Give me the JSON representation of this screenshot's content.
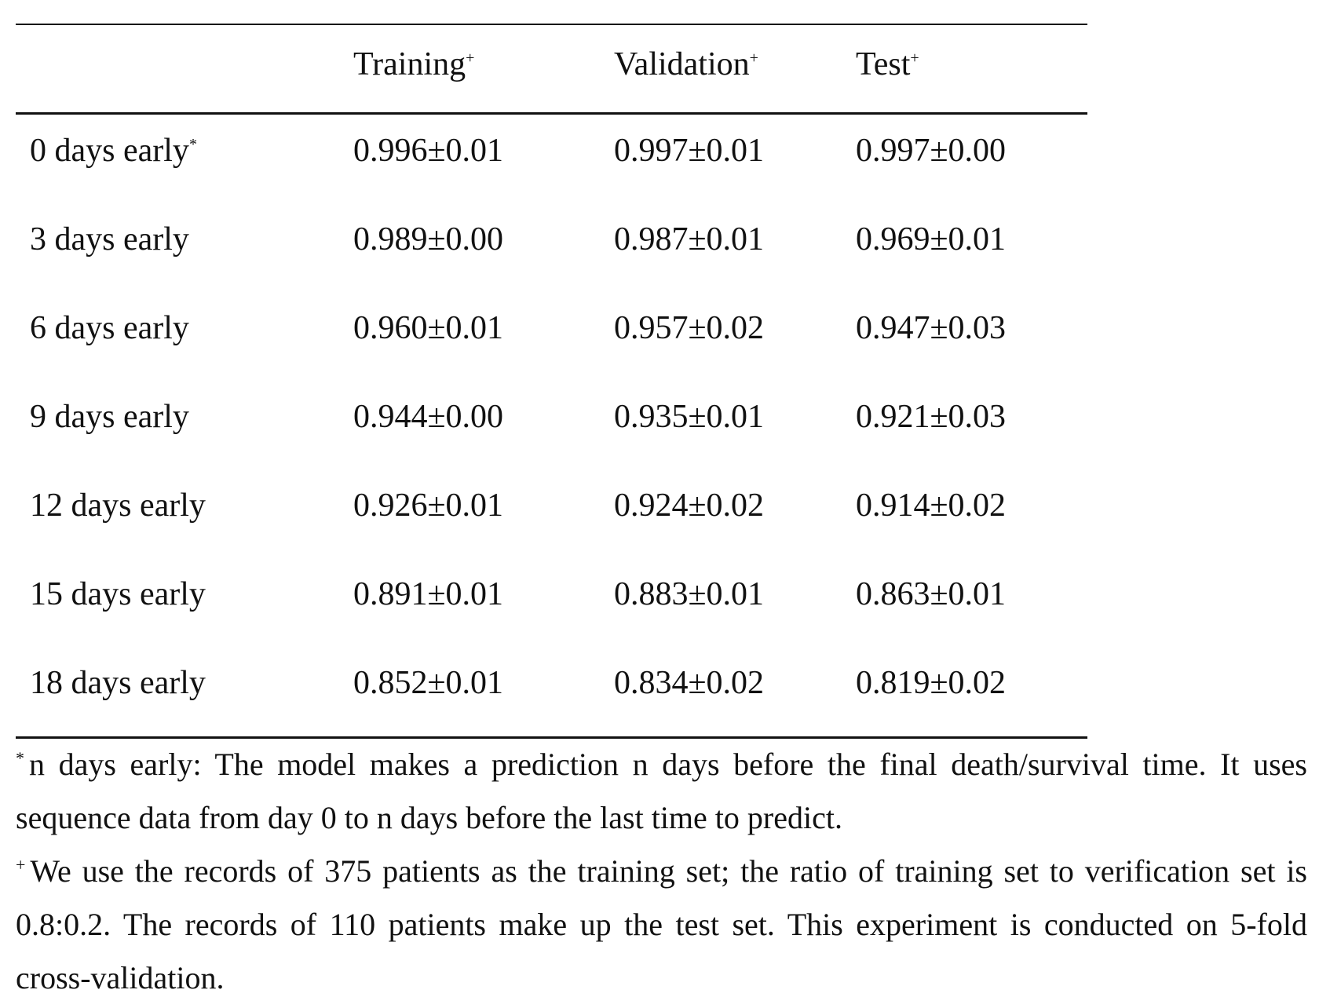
{
  "table": {
    "headers": {
      "col0": "",
      "col1": "Training",
      "col1_mark": "+",
      "col2": "Validation",
      "col2_mark": "+",
      "col3": "Test",
      "col3_mark": "+"
    },
    "rows": [
      {
        "label": "0 days early",
        "mark": "*",
        "training": "0.996±0.01",
        "validation": "0.997±0.01",
        "test": "0.997±0.00"
      },
      {
        "label": "3 days early",
        "mark": "",
        "training": "0.989±0.00",
        "validation": "0.987±0.01",
        "test": "0.969±0.01"
      },
      {
        "label": "6 days early",
        "mark": "",
        "training": "0.960±0.01",
        "validation": "0.957±0.02",
        "test": "0.947±0.03"
      },
      {
        "label": "9 days early",
        "mark": "",
        "training": "0.944±0.00",
        "validation": "0.935±0.01",
        "test": "0.921±0.03"
      },
      {
        "label": "12 days early",
        "mark": "",
        "training": "0.926±0.01",
        "validation": "0.924±0.02",
        "test": "0.914±0.02"
      },
      {
        "label": "15 days early",
        "mark": "",
        "training": "0.891±0.01",
        "validation": "0.883±0.01",
        "test": "0.863±0.01"
      },
      {
        "label": "18 days early",
        "mark": "",
        "training": "0.852±0.01",
        "validation": "0.834±0.02",
        "test": "0.819±0.02"
      }
    ]
  },
  "notes": [
    {
      "mark": "*",
      "text": "n days early: The model makes a prediction n days before the final death/survival time. It uses sequence data from day 0 to n days before the last time to predict."
    },
    {
      "mark": "+",
      "text": "We use the records of 375 patients as the training set; the ratio of training set to verification set is 0.8:0.2. The records of 110 patients make up the test set. This experiment is conducted on 5-fold cross-validation."
    }
  ]
}
